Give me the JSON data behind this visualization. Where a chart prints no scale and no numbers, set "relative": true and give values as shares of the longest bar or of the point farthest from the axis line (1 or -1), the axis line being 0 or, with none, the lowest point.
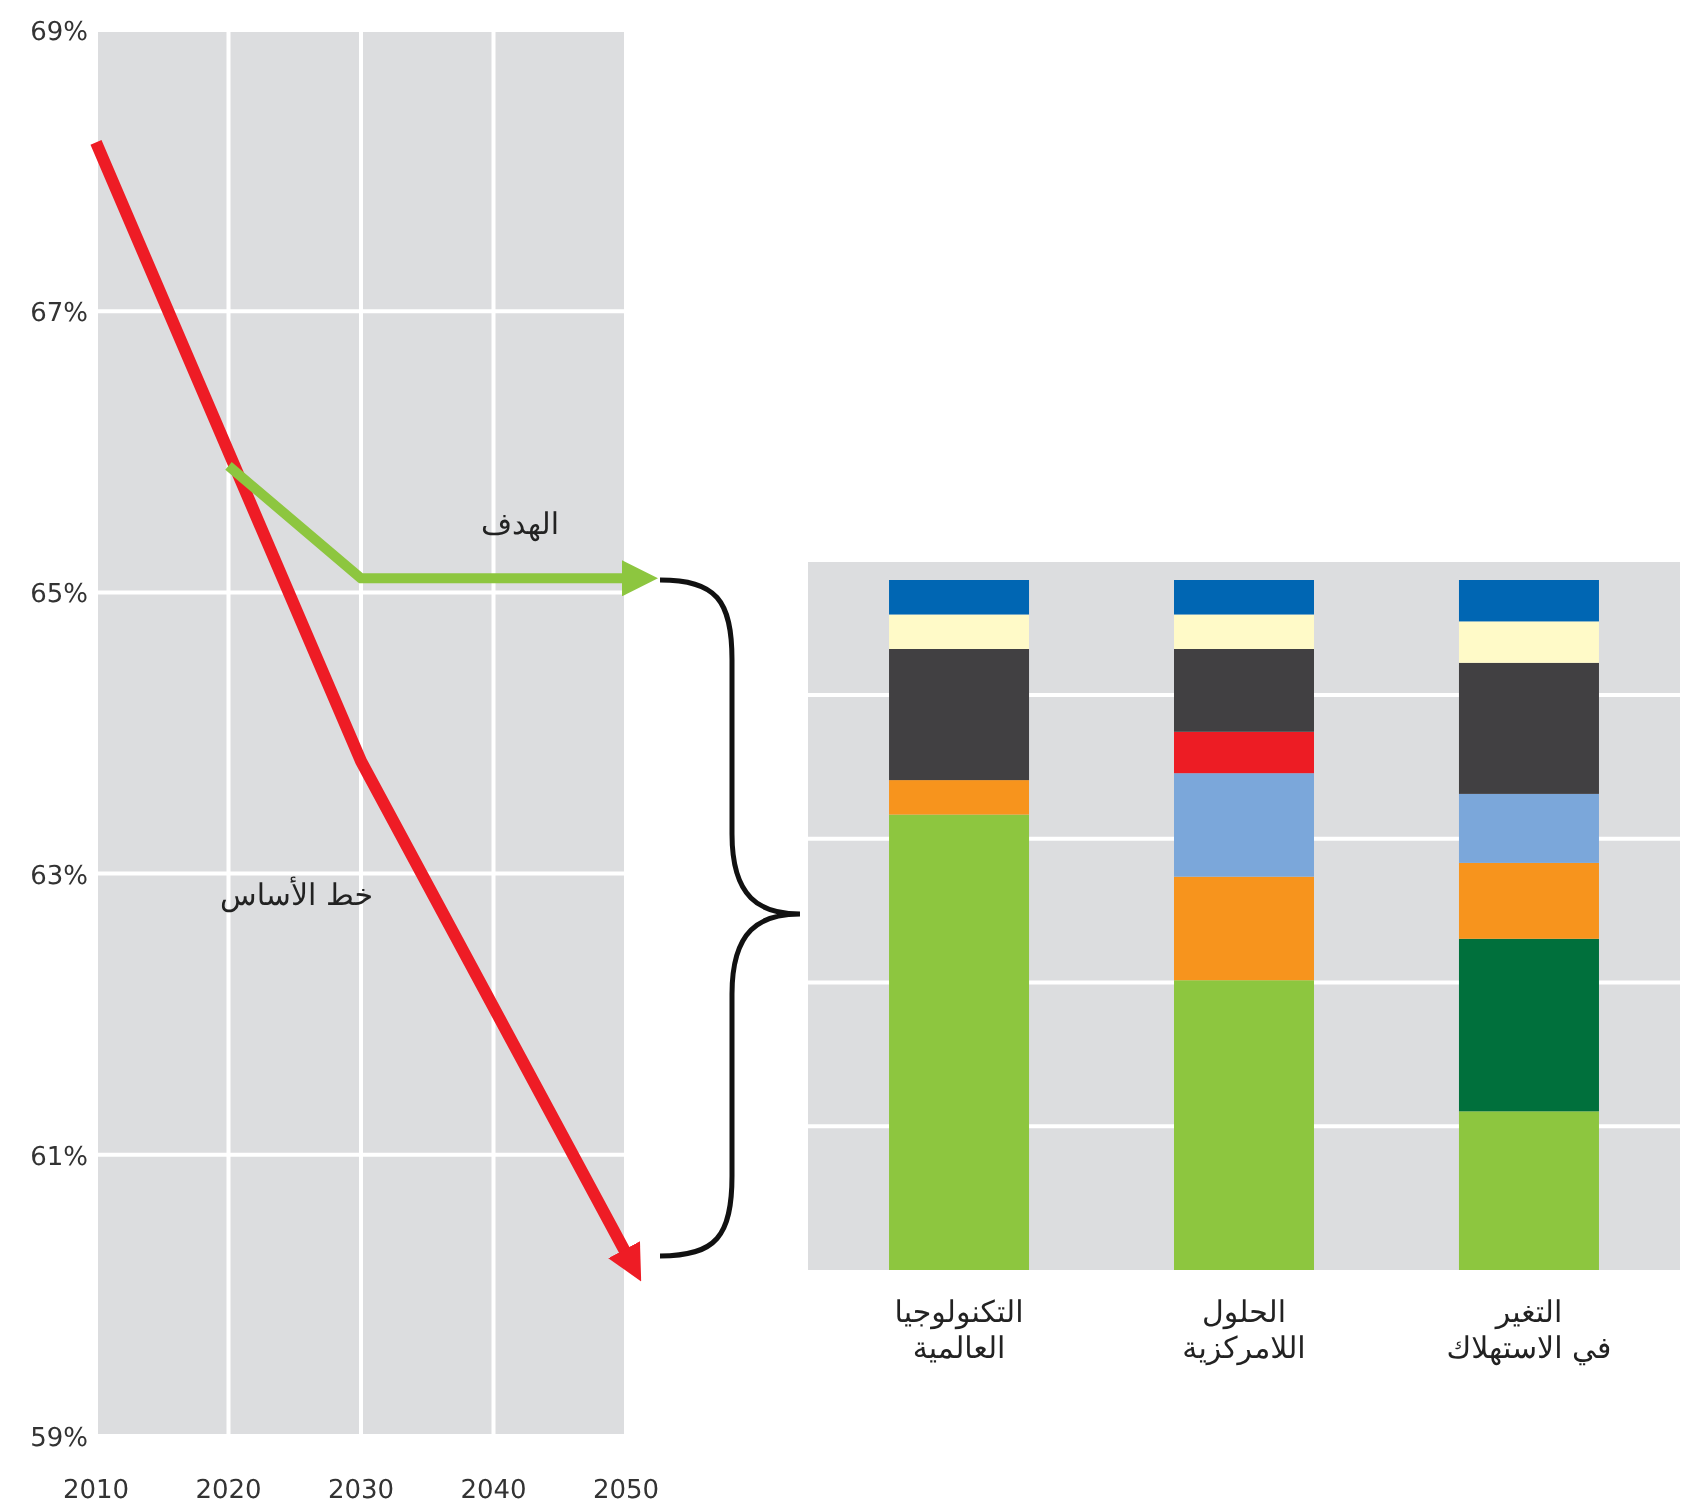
{
  "chart_data": [
    {
      "type": "line",
      "xlim": [
        2010,
        2050
      ],
      "ylim": [
        59,
        69
      ],
      "xticks": [
        2010,
        2020,
        2030,
        2040,
        2050
      ],
      "yticks": [
        {
          "value": 59,
          "label": "59%"
        },
        {
          "value": 61,
          "label": "61%"
        },
        {
          "value": 63,
          "label": "63%"
        },
        {
          "value": 65,
          "label": "65%"
        },
        {
          "value": 67,
          "label": "67%"
        },
        {
          "value": 69,
          "label": "69%"
        }
      ],
      "grid": true,
      "legend": false,
      "line_style": "solid",
      "marker": "none",
      "series": [
        {
          "name": "خط الأساس",
          "color": "#ee1c25",
          "x": [
            2010,
            2030,
            2050
          ],
          "values": [
            68.2,
            63.8,
            60.3
          ]
        },
        {
          "name": "الهدف",
          "color": "#8dc63f",
          "x": [
            2020,
            2030,
            2050
          ],
          "values": [
            65.9,
            65.1,
            65.1
          ]
        }
      ]
    },
    {
      "type": "bar",
      "stacked": true,
      "relative": true,
      "grid": "y",
      "legend": false,
      "categories": [
        "التكنولوجيا العالمية",
        "الحلول اللامركزية",
        "التغير في الاستهلاك"
      ],
      "series": [
        {
          "color": "#8dc63f",
          "values": [
            0.66,
            0.42,
            0.23
          ]
        },
        {
          "color": "#00703c",
          "values": [
            0,
            0,
            0.25
          ]
        },
        {
          "color": "#f7941d",
          "values": [
            0.05,
            0.15,
            0.11
          ]
        },
        {
          "color": "#7ba7da",
          "values": [
            0,
            0.15,
            0.1
          ]
        },
        {
          "color": "#ed1c24",
          "values": [
            0,
            0.06,
            0
          ]
        },
        {
          "color": "#414042",
          "values": [
            0.19,
            0.12,
            0.19
          ]
        },
        {
          "color": "#fffac8",
          "values": [
            0.05,
            0.05,
            0.06
          ]
        },
        {
          "color": "#0066b3",
          "values": [
            0.05,
            0.05,
            0.06
          ]
        }
      ]
    }
  ]
}
